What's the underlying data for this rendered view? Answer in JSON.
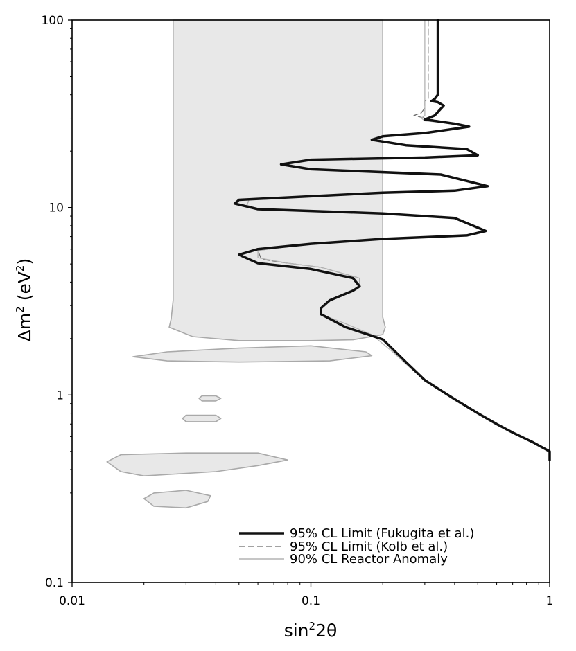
{
  "chart_data": {
    "type": "line",
    "xscale": "log",
    "yscale": "log",
    "xlim": [
      0.01,
      1
    ],
    "ylim": [
      0.1,
      100
    ],
    "xlabel": "sin²2θ",
    "ylabel": "Δm² (eV²)",
    "grid": false,
    "legend_position": "bottom-right",
    "xticks": [
      "0.01",
      "0.1",
      "1"
    ],
    "yticks": [
      "0.1",
      "1",
      "10",
      "100"
    ],
    "regions": [
      {
        "name": "90% CL Reactor Anomaly",
        "color": "#e8e8e8",
        "edge_color": "#a9a9a9",
        "polygons": [
          [
            [
              0.0265,
              100
            ],
            [
              0.0265,
              3.2
            ],
            [
              0.026,
              2.55
            ],
            [
              0.0255,
              2.3
            ],
            [
              0.032,
              2.05
            ],
            [
              0.05,
              1.95
            ],
            [
              0.1,
              1.95
            ],
            [
              0.15,
              1.97
            ],
            [
              0.2,
              2.1
            ],
            [
              0.205,
              2.3
            ],
            [
              0.2,
              2.6
            ],
            [
              0.2,
              100
            ]
          ],
          [
            [
              0.018,
              1.6
            ],
            [
              0.025,
              1.7
            ],
            [
              0.05,
              1.78
            ],
            [
              0.1,
              1.83
            ],
            [
              0.17,
              1.7
            ],
            [
              0.18,
              1.62
            ],
            [
              0.12,
              1.52
            ],
            [
              0.05,
              1.5
            ],
            [
              0.025,
              1.52
            ]
          ],
          [
            [
              0.034,
              0.96
            ],
            [
              0.035,
              0.99
            ],
            [
              0.04,
              0.99
            ],
            [
              0.042,
              0.96
            ],
            [
              0.04,
              0.93
            ],
            [
              0.035,
              0.93
            ]
          ],
          [
            [
              0.029,
              0.75
            ],
            [
              0.03,
              0.78
            ],
            [
              0.04,
              0.78
            ],
            [
              0.042,
              0.75
            ],
            [
              0.04,
              0.72
            ],
            [
              0.03,
              0.72
            ]
          ],
          [
            [
              0.014,
              0.44
            ],
            [
              0.016,
              0.48
            ],
            [
              0.03,
              0.49
            ],
            [
              0.06,
              0.49
            ],
            [
              0.08,
              0.45
            ],
            [
              0.06,
              0.42
            ],
            [
              0.04,
              0.39
            ],
            [
              0.02,
              0.37
            ],
            [
              0.016,
              0.39
            ]
          ],
          [
            [
              0.02,
              0.28
            ],
            [
              0.022,
              0.3
            ],
            [
              0.03,
              0.31
            ],
            [
              0.038,
              0.29
            ],
            [
              0.037,
              0.27
            ],
            [
              0.03,
              0.25
            ],
            [
              0.022,
              0.255
            ]
          ]
        ]
      }
    ],
    "series": [
      {
        "name": "95% CL Limit (Fukugita et al.)",
        "style": "solid-thick",
        "color": "#111111",
        "points": [
          [
            0.34,
            100
          ],
          [
            0.34,
            60
          ],
          [
            0.34,
            40
          ],
          [
            0.33,
            38
          ],
          [
            0.32,
            37
          ],
          [
            0.34,
            36.5
          ],
          [
            0.36,
            35
          ],
          [
            0.33,
            31
          ],
          [
            0.3,
            29.5
          ],
          [
            0.4,
            28
          ],
          [
            0.46,
            27
          ],
          [
            0.3,
            25
          ],
          [
            0.2,
            24
          ],
          [
            0.18,
            23
          ],
          [
            0.25,
            21.5
          ],
          [
            0.45,
            20.5
          ],
          [
            0.5,
            19
          ],
          [
            0.3,
            18.5
          ],
          [
            0.1,
            18
          ],
          [
            0.075,
            17
          ],
          [
            0.1,
            16
          ],
          [
            0.35,
            15
          ],
          [
            0.55,
            13
          ],
          [
            0.4,
            12.3
          ],
          [
            0.2,
            12
          ],
          [
            0.05,
            11
          ],
          [
            0.048,
            10.5
          ],
          [
            0.06,
            9.8
          ],
          [
            0.2,
            9.3
          ],
          [
            0.4,
            8.8
          ],
          [
            0.54,
            7.5
          ],
          [
            0.45,
            7.1
          ],
          [
            0.2,
            6.8
          ],
          [
            0.1,
            6.4
          ],
          [
            0.06,
            6
          ],
          [
            0.05,
            5.6
          ],
          [
            0.06,
            5.05
          ],
          [
            0.1,
            4.7
          ],
          [
            0.15,
            4.2
          ],
          [
            0.16,
            3.8
          ],
          [
            0.15,
            3.6
          ],
          [
            0.12,
            3.2
          ],
          [
            0.11,
            2.9
          ],
          [
            0.11,
            2.7
          ],
          [
            0.14,
            2.3
          ],
          [
            0.2,
            1.98
          ],
          [
            0.25,
            1.5
          ],
          [
            0.3,
            1.2
          ],
          [
            0.4,
            0.95
          ],
          [
            0.5,
            0.8
          ],
          [
            0.6,
            0.7
          ],
          [
            0.7,
            0.63
          ],
          [
            0.85,
            0.56
          ],
          [
            1,
            0.5
          ],
          [
            1,
            0.45
          ]
        ]
      },
      {
        "name": "95% CL Limit (Kolb et al.)",
        "style": "dashed-thin",
        "color": "#6a6a6a",
        "points": [
          [
            0.31,
            100
          ],
          [
            0.31,
            60
          ],
          [
            0.31,
            38
          ],
          [
            0.3,
            37
          ],
          [
            0.3,
            34
          ],
          [
            0.29,
            32
          ],
          [
            0.27,
            31
          ],
          [
            0.3,
            30
          ],
          [
            0.4,
            28
          ],
          [
            0.46,
            27
          ],
          [
            0.3,
            25
          ],
          [
            0.2,
            24
          ],
          [
            0.18,
            23
          ],
          [
            0.25,
            21.5
          ],
          [
            0.45,
            20.5
          ],
          [
            0.5,
            19
          ],
          [
            0.3,
            18.5
          ],
          [
            0.1,
            18
          ],
          [
            0.08,
            17
          ],
          [
            0.1,
            16
          ],
          [
            0.35,
            15
          ],
          [
            0.55,
            13
          ],
          [
            0.4,
            12.3
          ],
          [
            0.2,
            12
          ],
          [
            0.055,
            11
          ],
          [
            0.054,
            10.3
          ],
          [
            0.06,
            9.8
          ],
          [
            0.2,
            9.3
          ],
          [
            0.4,
            8.8
          ],
          [
            0.54,
            7.5
          ],
          [
            0.45,
            7.1
          ],
          [
            0.2,
            6.8
          ],
          [
            0.1,
            6.4
          ],
          [
            0.06,
            5.9
          ],
          [
            0.062,
            5.3
          ],
          [
            0.08,
            5.05
          ],
          [
            0.11,
            4.8
          ],
          [
            0.16,
            4.2
          ],
          [
            0.16,
            3.8
          ],
          [
            0.15,
            3.6
          ],
          [
            0.12,
            3.2
          ],
          [
            0.11,
            2.9
          ],
          [
            0.11,
            2.7
          ],
          [
            0.14,
            2.3
          ],
          [
            0.2,
            1.98
          ],
          [
            0.25,
            1.5
          ],
          [
            0.3,
            1.2
          ],
          [
            0.4,
            0.95
          ],
          [
            0.5,
            0.8
          ],
          [
            0.6,
            0.7
          ],
          [
            0.7,
            0.63
          ],
          [
            0.85,
            0.56
          ],
          [
            1,
            0.5
          ]
        ]
      },
      {
        "name": "90% CL Reactor Anomaly",
        "style": "solid-thin",
        "color": "#b4b4b4",
        "points": [
          [
            0.3,
            100
          ],
          [
            0.3,
            60
          ],
          [
            0.3,
            38
          ],
          [
            0.3,
            34
          ],
          [
            0.3,
            31
          ],
          [
            0.29,
            30
          ],
          [
            0.3,
            29
          ],
          [
            0.4,
            28
          ],
          [
            0.46,
            27
          ],
          [
            0.3,
            25
          ],
          [
            0.2,
            24
          ],
          [
            0.18,
            23
          ],
          [
            0.25,
            21.5
          ],
          [
            0.45,
            20.5
          ],
          [
            0.5,
            19
          ],
          [
            0.3,
            18.5
          ],
          [
            0.1,
            18
          ],
          [
            0.08,
            17
          ],
          [
            0.1,
            16
          ],
          [
            0.35,
            15
          ],
          [
            0.55,
            13
          ],
          [
            0.4,
            12.3
          ],
          [
            0.2,
            12
          ],
          [
            0.055,
            11
          ],
          [
            0.054,
            10.3
          ],
          [
            0.06,
            9.8
          ],
          [
            0.2,
            9.3
          ],
          [
            0.4,
            8.8
          ],
          [
            0.54,
            7.5
          ],
          [
            0.45,
            7.1
          ],
          [
            0.2,
            6.8
          ],
          [
            0.1,
            6.4
          ],
          [
            0.06,
            5.9
          ],
          [
            0.06,
            5.4
          ],
          [
            0.08,
            5.05
          ],
          [
            0.11,
            4.8
          ],
          [
            0.16,
            4.2
          ],
          [
            0.16,
            3.8
          ],
          [
            0.15,
            3.6
          ],
          [
            0.12,
            3.2
          ],
          [
            0.11,
            2.9
          ],
          [
            0.11,
            2.7
          ],
          [
            0.14,
            2.4
          ],
          [
            0.18,
            2.1
          ],
          [
            0.22,
            1.7
          ],
          [
            0.26,
            1.4
          ],
          [
            0.3,
            1.2
          ],
          [
            0.4,
            0.95
          ],
          [
            0.5,
            0.8
          ],
          [
            0.6,
            0.7
          ],
          [
            0.7,
            0.63
          ],
          [
            0.85,
            0.56
          ],
          [
            1,
            0.5
          ]
        ]
      }
    ],
    "legend": [
      {
        "label": "95% CL Limit (Fukugita et al.)",
        "style": "solid-thick"
      },
      {
        "label": "95% CL Limit (Kolb et al.)",
        "style": "dashed-thin"
      },
      {
        "label": "90% CL Reactor Anomaly",
        "style": "solid-thin"
      }
    ]
  }
}
